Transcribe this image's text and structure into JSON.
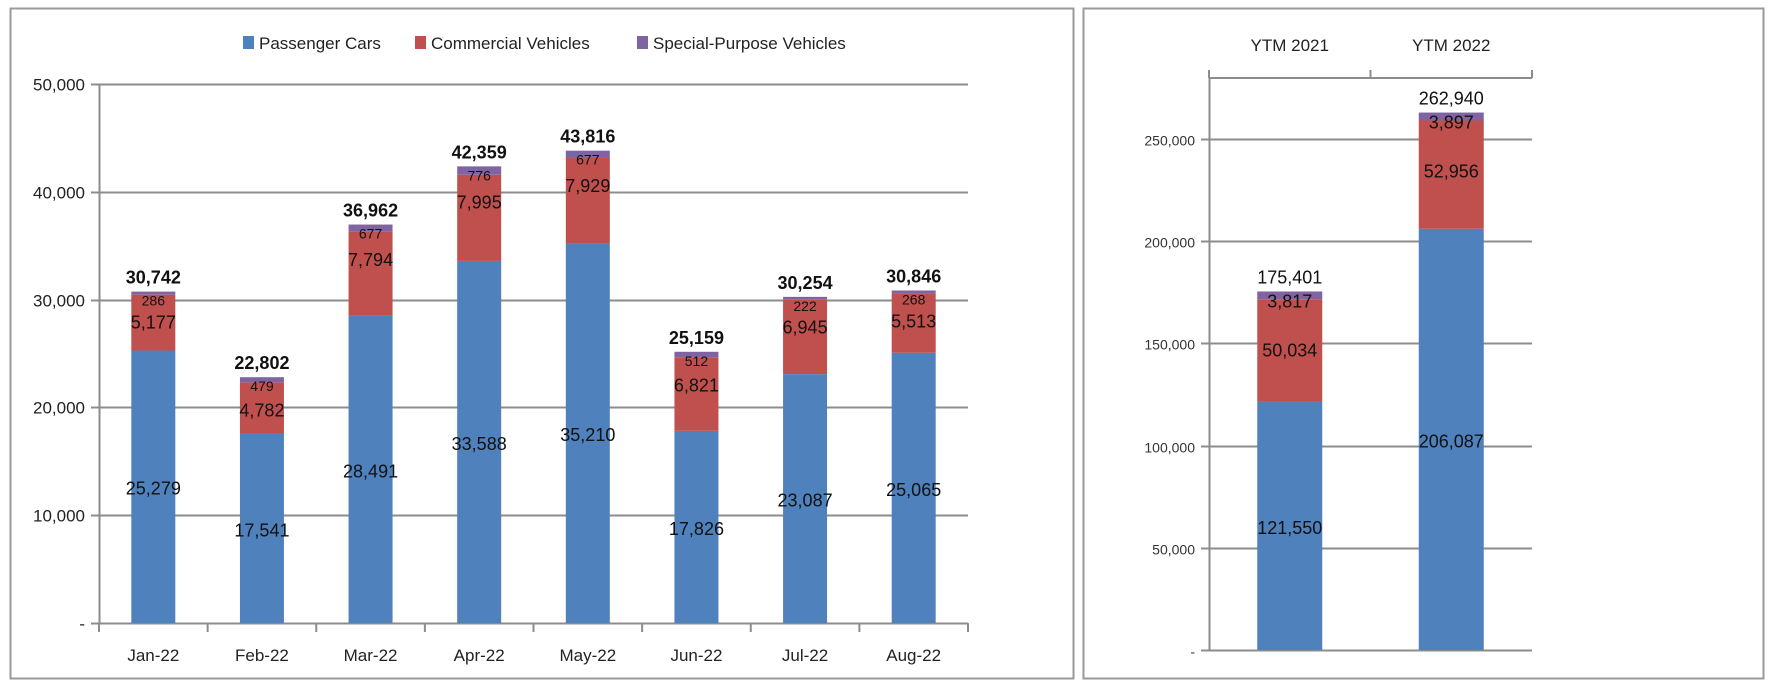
{
  "colors": {
    "passenger": "#4f81bd",
    "commercial": "#c0504d",
    "special": "#8064a2",
    "grid": "#8c8c8c",
    "frame": "#9a9a9a"
  },
  "chart_data": [
    {
      "type": "bar",
      "stacked": true,
      "title": "",
      "xlabel": "",
      "ylabel": "",
      "categories": [
        "Jan-22",
        "Feb-22",
        "Mar-22",
        "Apr-22",
        "May-22",
        "Jun-22",
        "Jul-22",
        "Aug-22"
      ],
      "series": [
        {
          "name": "Passenger Cars",
          "color_key": "passenger",
          "values": [
            25279,
            17541,
            28491,
            33588,
            35210,
            17826,
            23087,
            25065
          ]
        },
        {
          "name": "Commercial Vehicles",
          "color_key": "commercial",
          "values": [
            5177,
            4782,
            7794,
            7995,
            7929,
            6821,
            6945,
            5513
          ]
        },
        {
          "name": "Special-Purpose Vehicles",
          "color_key": "special",
          "values": [
            286,
            479,
            677,
            776,
            677,
            512,
            222,
            268
          ]
        }
      ],
      "totals": [
        30742,
        22802,
        36962,
        42359,
        43816,
        25159,
        30254,
        30846
      ],
      "totals_labels": [
        "30,742",
        "22,802",
        "36,962",
        "42,359",
        "43,816",
        "25,159",
        "30,254",
        "30,846"
      ],
      "value_labels": [
        [
          "25,279",
          "17,541",
          "28,491",
          "33,588",
          "35,210",
          "17,826",
          "23,087",
          "25,065"
        ],
        [
          "5,177",
          "4,782",
          "7,794",
          "7,995",
          "7,929",
          "6,821",
          "6,945",
          "5,513"
        ],
        [
          "286",
          "479",
          "677",
          "776",
          "677",
          "512",
          "222",
          "268"
        ]
      ],
      "ylim": [
        0,
        50000
      ],
      "yticks": [
        0,
        10000,
        20000,
        30000,
        40000,
        50000
      ],
      "ytick_labels": [
        "-",
        "10,000",
        "20,000",
        "30,000",
        "40,000",
        "50,000"
      ],
      "grid": true,
      "legend": {
        "placement": "top-center",
        "entries": [
          "Passenger Cars",
          "Commercial Vehicles",
          "Special-Purpose Vehicles"
        ]
      }
    },
    {
      "type": "bar",
      "stacked": true,
      "title": "",
      "xlabel": "",
      "ylabel": "",
      "categories": [
        "YTM 2021",
        "YTM 2022"
      ],
      "category_axis_position": "top",
      "series": [
        {
          "name": "Passenger Cars",
          "color_key": "passenger",
          "values": [
            121550,
            206087
          ]
        },
        {
          "name": "Commercial Vehicles",
          "color_key": "commercial",
          "values": [
            50034,
            52956
          ]
        },
        {
          "name": "Special-Purpose Vehicles",
          "color_key": "special",
          "values": [
            3817,
            3897
          ]
        }
      ],
      "totals": [
        175401,
        262940
      ],
      "totals_labels": [
        "175,401",
        "262,940"
      ],
      "value_labels": [
        [
          "121,550",
          "206,087"
        ],
        [
          "50,034",
          "52,956"
        ],
        [
          "3,817",
          "3,897"
        ]
      ],
      "ylim": [
        0,
        280000
      ],
      "yticks": [
        0,
        50000,
        100000,
        150000,
        200000,
        250000
      ],
      "ytick_labels": [
        "-",
        "50,000",
        "100,000",
        "150,000",
        "200,000",
        "250,000"
      ],
      "grid": true,
      "legend": {
        "placement": "none",
        "entries": []
      }
    }
  ]
}
